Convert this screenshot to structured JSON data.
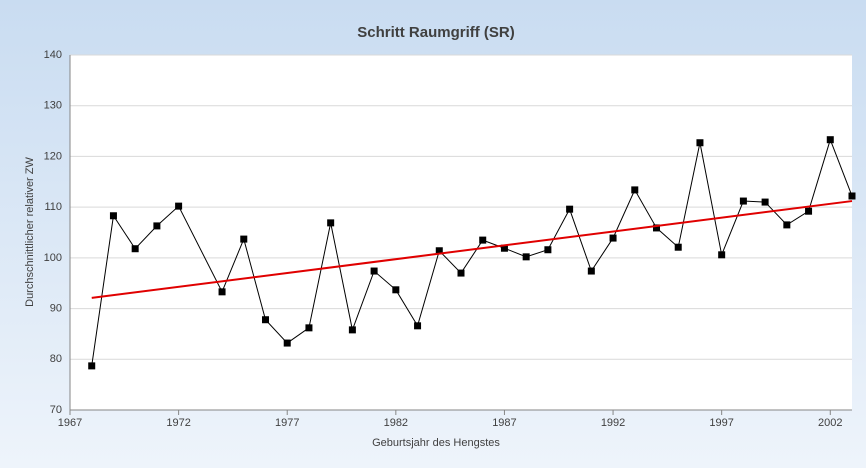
{
  "chart_data": {
    "type": "line",
    "title": "Schritt Raumgriff (SR)",
    "x_label": "Geburtsjahr des Hengstes",
    "y_label": "Durchschnittlicher relativer ZW",
    "x": [
      1968,
      1969,
      1970,
      1971,
      1972,
      1974,
      1975,
      1976,
      1977,
      1978,
      1979,
      1980,
      1981,
      1982,
      1983,
      1984,
      1985,
      1986,
      1987,
      1988,
      1989,
      1990,
      1991,
      1992,
      1993,
      1994,
      1995,
      1996,
      1997,
      1998,
      1999,
      2000,
      2001,
      2002,
      2003
    ],
    "series": [
      {
        "color": "#000000",
        "values": [
          78.7,
          108.3,
          101.8,
          106.3,
          110.2,
          93.3,
          103.7,
          87.8,
          83.2,
          86.2,
          106.9,
          85.8,
          97.4,
          93.7,
          86.6,
          101.4,
          97.0,
          103.5,
          101.9,
          100.2,
          101.6,
          109.6,
          97.4,
          103.9,
          113.4,
          105.9,
          102.1,
          122.7,
          100.6,
          111.2,
          111.0,
          106.5,
          109.2,
          123.3,
          112.2
        ]
      }
    ],
    "trendline": {
      "color": "#e00000",
      "x": [
        1968,
        2003
      ],
      "values": [
        92.1,
        111.2
      ]
    },
    "xlim": [
      1967,
      2003
    ],
    "xticks": [
      1967,
      1972,
      1977,
      1982,
      1987,
      1992,
      1997,
      2002
    ],
    "ylim": [
      70,
      140
    ],
    "yticks": [
      70,
      80,
      90,
      100,
      110,
      120,
      130,
      140
    ],
    "grid": true
  }
}
